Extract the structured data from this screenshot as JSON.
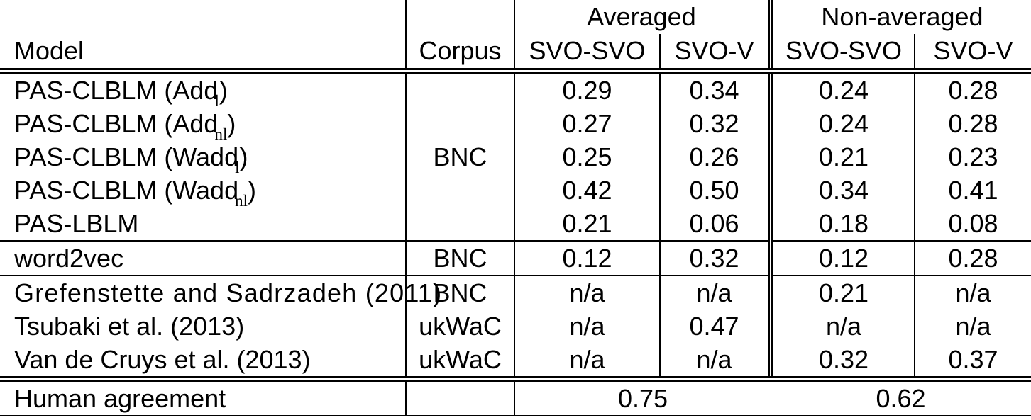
{
  "table": {
    "header": {
      "group_averaged": "Averaged",
      "group_non_averaged": "Non-averaged",
      "col_model": "Model",
      "col_corpus": "Corpus",
      "subcols": [
        "SVO-SVO",
        "SVO-V",
        "SVO-SVO",
        "SVO-V"
      ]
    },
    "rows": [
      {
        "model_pre": "PAS-CLBLM (Add",
        "model_sub": "l",
        "model_post": ")",
        "corpus": "BNC",
        "values": [
          "0.29",
          "0.34",
          "0.24",
          "0.28"
        ]
      },
      {
        "model_pre": "PAS-CLBLM (Add",
        "model_sub": "nl",
        "model_post": ")",
        "values": [
          "0.27",
          "0.32",
          "0.24",
          "0.28"
        ]
      },
      {
        "model_pre": "PAS-CLBLM (Wadd",
        "model_sub": "l",
        "model_post": ")",
        "values": [
          "0.25",
          "0.26",
          "0.21",
          "0.23"
        ]
      },
      {
        "model_pre": "PAS-CLBLM (Wadd",
        "model_sub": "nl",
        "model_post": ")",
        "values": [
          "0.42",
          "0.50",
          "0.34",
          "0.41"
        ]
      },
      {
        "model_pre": "PAS-LBLM",
        "model_sub": "",
        "model_post": "",
        "values": [
          "0.21",
          "0.06",
          "0.18",
          "0.08"
        ]
      },
      {
        "model_pre": "word2vec",
        "model_sub": "",
        "model_post": "",
        "corpus": "BNC",
        "values": [
          "0.12",
          "0.32",
          "0.12",
          "0.28"
        ]
      },
      {
        "model_pre": "Grefenstette and Sadrzadeh (2011)",
        "model_sub": "",
        "model_post": "",
        "corpus": "BNC",
        "values": [
          "n/a",
          "n/a",
          "0.21",
          "n/a"
        ]
      },
      {
        "model_pre": "Tsubaki et al. (2013)",
        "model_sub": "",
        "model_post": "",
        "corpus": "ukWaC",
        "values": [
          "n/a",
          "0.47",
          "n/a",
          "n/a"
        ]
      },
      {
        "model_pre": "Van de Cruys et al. (2013)",
        "model_sub": "",
        "model_post": "",
        "corpus": "ukWaC",
        "values": [
          "n/a",
          "n/a",
          "0.32",
          "0.37"
        ]
      }
    ],
    "footer": {
      "label": "Human agreement",
      "averaged": "0.75",
      "non_averaged": "0.62"
    }
  }
}
